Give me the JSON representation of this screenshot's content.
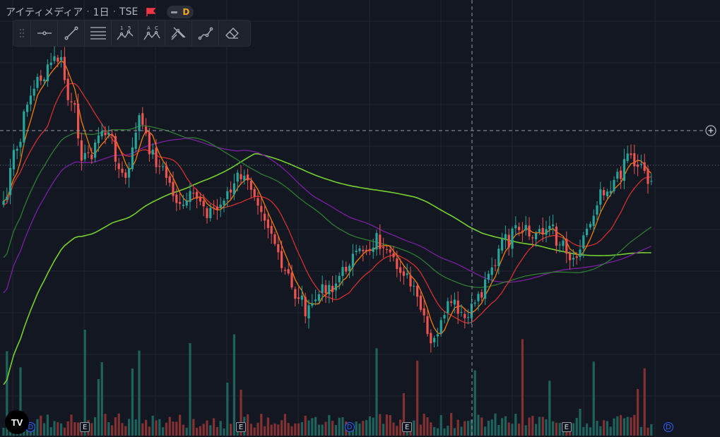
{
  "header": {
    "symbol_name": "アイティメディア",
    "interval": "1日",
    "exchange": "TSE",
    "flag_color": "#f23645",
    "badge_letter": "D"
  },
  "toolbar": {
    "tools": [
      {
        "name": "horizontal-ray-icon"
      },
      {
        "name": "trend-line-icon"
      },
      {
        "name": "fib-retracement-icon"
      },
      {
        "name": "xabcd-pattern-icon",
        "labels": [
          "1",
          "5"
        ]
      },
      {
        "name": "abc-pattern-icon",
        "labels": [
          "A",
          "C"
        ]
      },
      {
        "name": "long-position-icon"
      },
      {
        "name": "path-icon"
      },
      {
        "name": "eraser-icon"
      }
    ]
  },
  "chart_data": {
    "type": "candlestick",
    "bars": 192,
    "colors": {
      "up": "#26a69a",
      "down": "#ef5350",
      "ma_short": "#f57c00",
      "ma_mid": "#d32f2f",
      "ma_long1": "#2e7d32",
      "ma_long2": "#7b1fa2",
      "ma_long3": "#76d02f",
      "vol_up": "#1f6b63",
      "vol_down": "#8f3432"
    },
    "price_anchors": [
      [
        0,
        285
      ],
      [
        4,
        210
      ],
      [
        8,
        130
      ],
      [
        12,
        105
      ],
      [
        16,
        80
      ],
      [
        20,
        150
      ],
      [
        24,
        225
      ],
      [
        30,
        185
      ],
      [
        36,
        255
      ],
      [
        40,
        170
      ],
      [
        44,
        220
      ],
      [
        48,
        250
      ],
      [
        52,
        295
      ],
      [
        56,
        280
      ],
      [
        62,
        300
      ],
      [
        66,
        275
      ],
      [
        70,
        250
      ],
      [
        74,
        270
      ],
      [
        78,
        315
      ],
      [
        82,
        380
      ],
      [
        86,
        415
      ],
      [
        90,
        440
      ],
      [
        94,
        410
      ],
      [
        98,
        400
      ],
      [
        102,
        370
      ],
      [
        106,
        355
      ],
      [
        110,
        340
      ],
      [
        114,
        370
      ],
      [
        118,
        385
      ],
      [
        122,
        425
      ],
      [
        126,
        490
      ],
      [
        128,
        470
      ],
      [
        132,
        430
      ],
      [
        136,
        455
      ],
      [
        140,
        420
      ],
      [
        144,
        375
      ],
      [
        148,
        340
      ],
      [
        152,
        330
      ],
      [
        156,
        335
      ],
      [
        160,
        320
      ],
      [
        164,
        340
      ],
      [
        168,
        365
      ],
      [
        172,
        325
      ],
      [
        176,
        270
      ],
      [
        180,
        260
      ],
      [
        184,
        218
      ],
      [
        188,
        235
      ],
      [
        191,
        255
      ]
    ],
    "earnings_markers": [
      {
        "label": "D",
        "bar": 8
      },
      {
        "label": "E",
        "bar": 24
      },
      {
        "label": "E",
        "bar": 70
      },
      {
        "label": "D",
        "bar": 102
      },
      {
        "label": "E",
        "bar": 119
      },
      {
        "label": "E",
        "bar": 166
      },
      {
        "label": "D",
        "bar": 196
      }
    ]
  },
  "logo_text": "TV"
}
